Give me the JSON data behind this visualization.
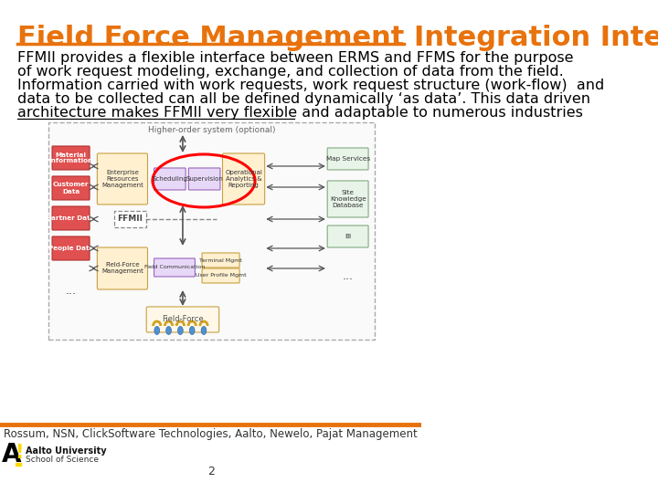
{
  "title": "Field Force Management Integration Interface",
  "title_color": "#E8720C",
  "title_fontsize": 22,
  "body_lines": [
    "FFMII provides a flexible interface between ERMS and FFMS for the purpose",
    "of work request modeling, exchange, and collection of data from the field.",
    "Information carried with work requests, work request structure (work-flow)  and",
    "data to be collected can all be defined dynamically ‘as data’. This data driven",
    "architecture makes FFMII very flexible and adaptable to numerous industries"
  ],
  "body_fontsize": 11.5,
  "footer_text": "Rossum, NSN, ClickSoftware Technologies, Aalto, Newelo, Pajat Management",
  "footer_fontsize": 8.5,
  "page_number": "2",
  "bg_color": "#FFFFFF",
  "orange_color": "#E8720C",
  "aalto_A_color": "#000000",
  "aalto_exclaim_color": "#FFD700"
}
